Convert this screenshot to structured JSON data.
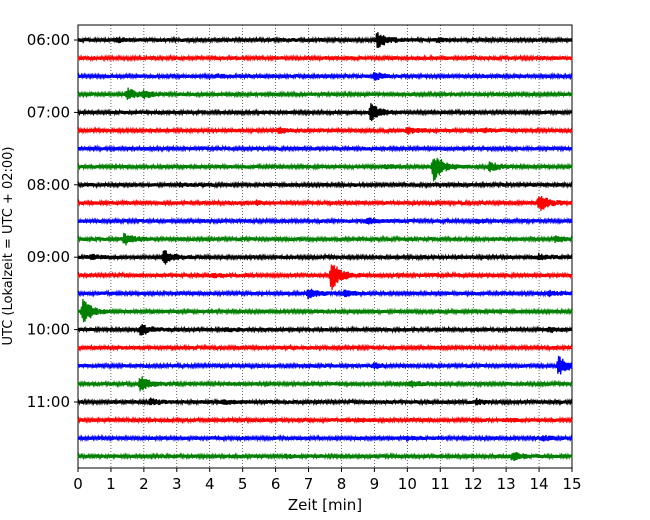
{
  "chart_data": {
    "type": "line",
    "chart_kind": "helicorder seismogram",
    "xlabel": "Zeit  [min]",
    "ylabel": "UTC (Lokalzeit = UTC + 02:00)",
    "xlim": [
      0,
      15
    ],
    "x_ticks": [
      0,
      1,
      2,
      3,
      4,
      5,
      6,
      7,
      8,
      9,
      10,
      11,
      12,
      13,
      14,
      15
    ],
    "x_ticks_labels": [
      "0",
      "1",
      "2",
      "3",
      "4",
      "5",
      "6",
      "7",
      "8",
      "9",
      "10",
      "11",
      "12",
      "13",
      "14",
      "15"
    ],
    "y_tick_labels": [
      "06:00",
      "07:00",
      "08:00",
      "09:00",
      "10:00",
      "11:00"
    ],
    "trace_minutes": 15,
    "vertical_grid": true,
    "grid_style": "dotted",
    "color_cycle": [
      "#000000",
      "#ff0000",
      "#0000ff",
      "#008000"
    ],
    "traces": [
      {
        "start": "06:00",
        "events": [
          [
            1.2,
            0.18
          ],
          [
            9.1,
            0.8
          ],
          [
            10.9,
            0.18
          ]
        ]
      },
      {
        "start": "06:15",
        "events": []
      },
      {
        "start": "06:30",
        "events": [
          [
            9.0,
            0.32
          ],
          [
            4.2,
            0.12
          ]
        ]
      },
      {
        "start": "06:45",
        "events": [
          [
            1.5,
            0.6
          ],
          [
            2.0,
            0.3
          ]
        ]
      },
      {
        "start": "07:00",
        "events": [
          [
            8.9,
            0.9
          ]
        ]
      },
      {
        "start": "07:15",
        "events": [
          [
            6.1,
            0.2
          ],
          [
            10.0,
            0.3
          ],
          [
            12.3,
            0.15
          ]
        ]
      },
      {
        "start": "07:30",
        "events": []
      },
      {
        "start": "07:45",
        "events": [
          [
            10.8,
            1.4
          ],
          [
            12.5,
            0.45
          ],
          [
            9.3,
            0.15
          ]
        ]
      },
      {
        "start": "08:00",
        "events": [
          [
            3.1,
            0.15
          ]
        ]
      },
      {
        "start": "08:15",
        "events": [
          [
            5.4,
            0.15
          ],
          [
            14.0,
            0.8
          ]
        ]
      },
      {
        "start": "08:30",
        "events": [
          [
            8.8,
            0.3
          ],
          [
            12.1,
            0.15
          ]
        ]
      },
      {
        "start": "08:45",
        "events": [
          [
            1.4,
            0.55
          ],
          [
            14.5,
            0.25
          ]
        ]
      },
      {
        "start": "09:00",
        "events": [
          [
            0.4,
            0.2
          ],
          [
            2.6,
            0.75
          ],
          [
            14.0,
            0.25
          ]
        ]
      },
      {
        "start": "09:15",
        "events": [
          [
            7.7,
            1.5
          ],
          [
            4.1,
            0.15
          ]
        ]
      },
      {
        "start": "09:30",
        "events": [
          [
            7.0,
            0.45
          ],
          [
            8.1,
            0.3
          ],
          [
            14.3,
            0.2
          ]
        ]
      },
      {
        "start": "09:45",
        "events": [
          [
            0.15,
            1.3
          ]
        ]
      },
      {
        "start": "10:00",
        "events": [
          [
            1.9,
            0.55
          ],
          [
            4.5,
            0.15
          ],
          [
            14.3,
            0.2
          ]
        ]
      },
      {
        "start": "10:15",
        "events": []
      },
      {
        "start": "10:30",
        "events": [
          [
            9.0,
            0.2
          ],
          [
            14.6,
            0.9
          ]
        ]
      },
      {
        "start": "10:45",
        "events": [
          [
            1.9,
            0.7
          ],
          [
            10.1,
            0.3
          ]
        ]
      },
      {
        "start": "11:00",
        "events": [
          [
            2.2,
            0.3
          ],
          [
            4.4,
            0.2
          ],
          [
            12.1,
            0.2
          ]
        ]
      },
      {
        "start": "11:15",
        "events": [
          [
            8.5,
            0.12
          ],
          [
            13.0,
            0.15
          ]
        ]
      },
      {
        "start": "11:30",
        "events": [
          [
            10.0,
            0.15
          ],
          [
            14.1,
            0.2
          ]
        ]
      },
      {
        "start": "11:45",
        "events": [
          [
            13.2,
            0.4
          ],
          [
            6.3,
            0.15
          ]
        ]
      }
    ]
  }
}
